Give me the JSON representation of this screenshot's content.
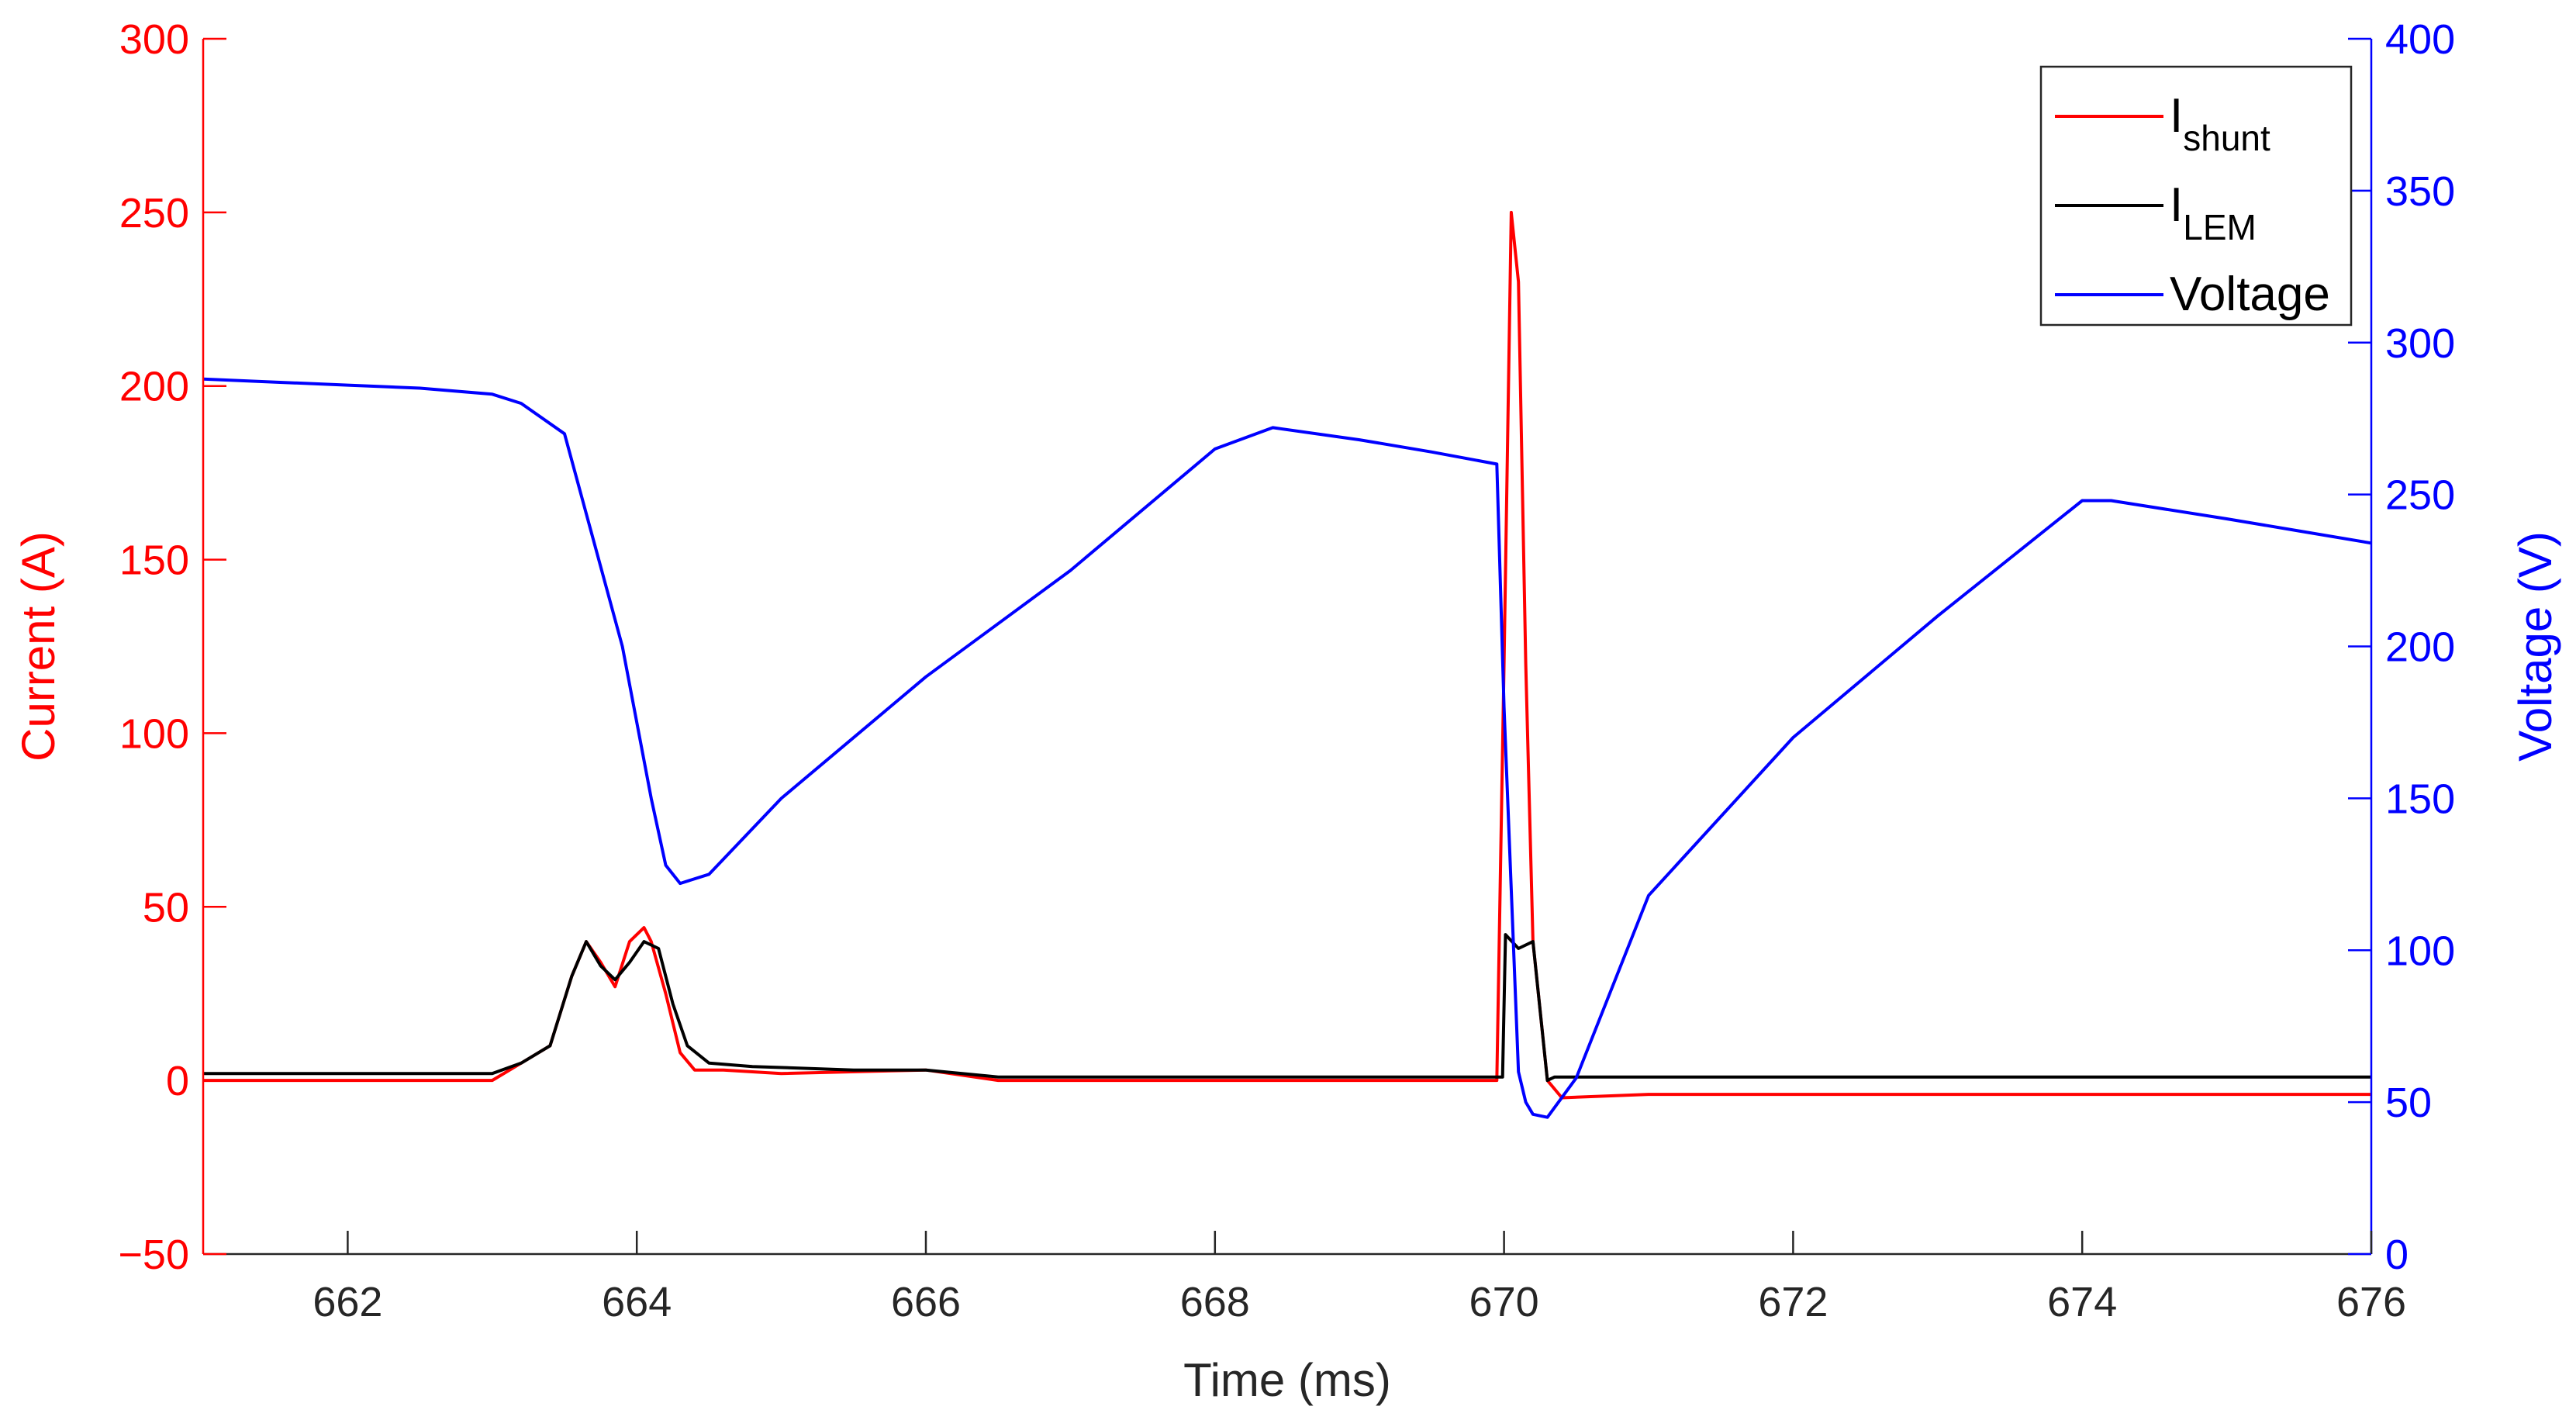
{
  "chart_data": {
    "type": "line",
    "xlabel": "Time (ms)",
    "ylabel_left": "Current (A)",
    "ylabel_right": "Voltage (V)",
    "xlim": [
      661,
      676
    ],
    "ylim_left": [
      -50,
      300
    ],
    "ylim_right": [
      0,
      400
    ],
    "xticks": [
      662,
      664,
      666,
      668,
      670,
      672,
      674,
      676
    ],
    "yticks_left": [
      -50,
      0,
      50,
      100,
      150,
      200,
      250,
      300
    ],
    "yticks_right": [
      0,
      50,
      100,
      150,
      200,
      250,
      300,
      350,
      400
    ],
    "ytick_labels_left": [
      "−50",
      "0",
      "50",
      "100",
      "150",
      "200",
      "250",
      "300"
    ],
    "grid": false,
    "legend_position": "top-right",
    "colors": {
      "left_axis": "#ff0000",
      "right_axis": "#0000ff",
      "bottom_axis": "#262626"
    },
    "series": [
      {
        "name": "I",
        "subscript": "shunt",
        "axis": "left",
        "color": "#ff0000",
        "x": [
          661.0,
          663.0,
          663.2,
          663.4,
          663.55,
          663.65,
          663.75,
          663.85,
          663.95,
          664.05,
          664.1,
          664.2,
          664.3,
          664.4,
          664.6,
          665.0,
          666.0,
          666.5,
          669.95,
          670.0,
          670.05,
          670.1,
          670.15,
          670.2,
          670.3,
          670.4,
          671.0,
          676.0
        ],
        "y": [
          0,
          0,
          5,
          10,
          30,
          40,
          34,
          27,
          40,
          44,
          40,
          25,
          8,
          3,
          3,
          2,
          3,
          0,
          0,
          120,
          250,
          230,
          120,
          40,
          0,
          -5,
          -4,
          -4
        ]
      },
      {
        "name": "I",
        "subscript": "LEM",
        "axis": "left",
        "color": "#000000",
        "x": [
          661.0,
          663.0,
          663.2,
          663.4,
          663.55,
          663.65,
          663.75,
          663.85,
          663.95,
          664.05,
          664.15,
          664.25,
          664.35,
          664.5,
          664.8,
          665.5,
          666.0,
          666.5,
          669.99,
          670.01,
          670.1,
          670.2,
          670.25,
          670.3,
          670.35,
          676.0
        ],
        "y": [
          2,
          2,
          5,
          10,
          30,
          40,
          33,
          29,
          34,
          40,
          38,
          22,
          10,
          5,
          4,
          3,
          3,
          1,
          1,
          42,
          38,
          40,
          20,
          0,
          1,
          1
        ]
      },
      {
        "name": "Voltage",
        "axis": "right",
        "color": "#0000ff",
        "x": [
          661.0,
          661.5,
          662.0,
          662.5,
          663.0,
          663.2,
          663.5,
          663.9,
          664.1,
          664.2,
          664.3,
          664.5,
          665.0,
          666.0,
          667.0,
          668.0,
          668.4,
          669.0,
          669.5,
          669.95,
          670.0,
          670.05,
          670.1,
          670.15,
          670.2,
          670.3,
          670.5,
          671.0,
          672.0,
          673.0,
          674.0,
          674.2,
          675.0,
          675.5,
          676.0
        ],
        "y": [
          288,
          287,
          286,
          285,
          283,
          280,
          270,
          200,
          150,
          128,
          122,
          125,
          150,
          190,
          225,
          265,
          272,
          268,
          264,
          260,
          180,
          120,
          60,
          50,
          46,
          45,
          58,
          118,
          170,
          210,
          248,
          248,
          242,
          238,
          234
        ]
      }
    ]
  }
}
